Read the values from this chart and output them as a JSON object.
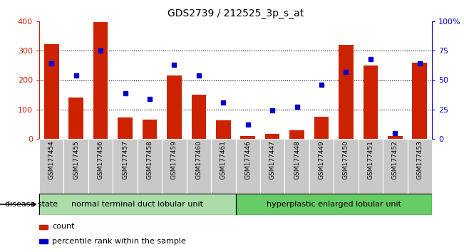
{
  "title": "GDS2739 / 212525_3p_s_at",
  "categories": [
    "GSM177454",
    "GSM177455",
    "GSM177456",
    "GSM177457",
    "GSM177458",
    "GSM177459",
    "GSM177460",
    "GSM177461",
    "GSM177446",
    "GSM177447",
    "GSM177448",
    "GSM177449",
    "GSM177450",
    "GSM177451",
    "GSM177452",
    "GSM177453"
  ],
  "counts": [
    322,
    140,
    398,
    72,
    65,
    215,
    150,
    62,
    10,
    18,
    28,
    75,
    320,
    250,
    10,
    260
  ],
  "percentiles": [
    64,
    54,
    75,
    39,
    34,
    63,
    54,
    31,
    12,
    24,
    27,
    46,
    57,
    68,
    5,
    64
  ],
  "group1_label": "normal terminal duct lobular unit",
  "group2_label": "hyperplastic enlarged lobular unit",
  "group1_count": 8,
  "group2_count": 8,
  "bar_color": "#cc2200",
  "dot_color": "#0000cc",
  "left_axis_color": "#cc2200",
  "right_axis_color": "#0000cc",
  "ylim_left": [
    0,
    400
  ],
  "ylim_right": [
    0,
    100
  ],
  "left_ticks": [
    0,
    100,
    200,
    300,
    400
  ],
  "right_ticks": [
    0,
    25,
    50,
    75,
    100
  ],
  "right_tick_labels": [
    "0",
    "25",
    "50",
    "75",
    "100%"
  ],
  "grid_color": "black",
  "background_xtick": "#c8c8c8",
  "group1_bg": "#aaddaa",
  "group2_bg": "#66cc66",
  "legend_count_label": "count",
  "legend_pct_label": "percentile rank within the sample",
  "disease_state_label": "disease state"
}
